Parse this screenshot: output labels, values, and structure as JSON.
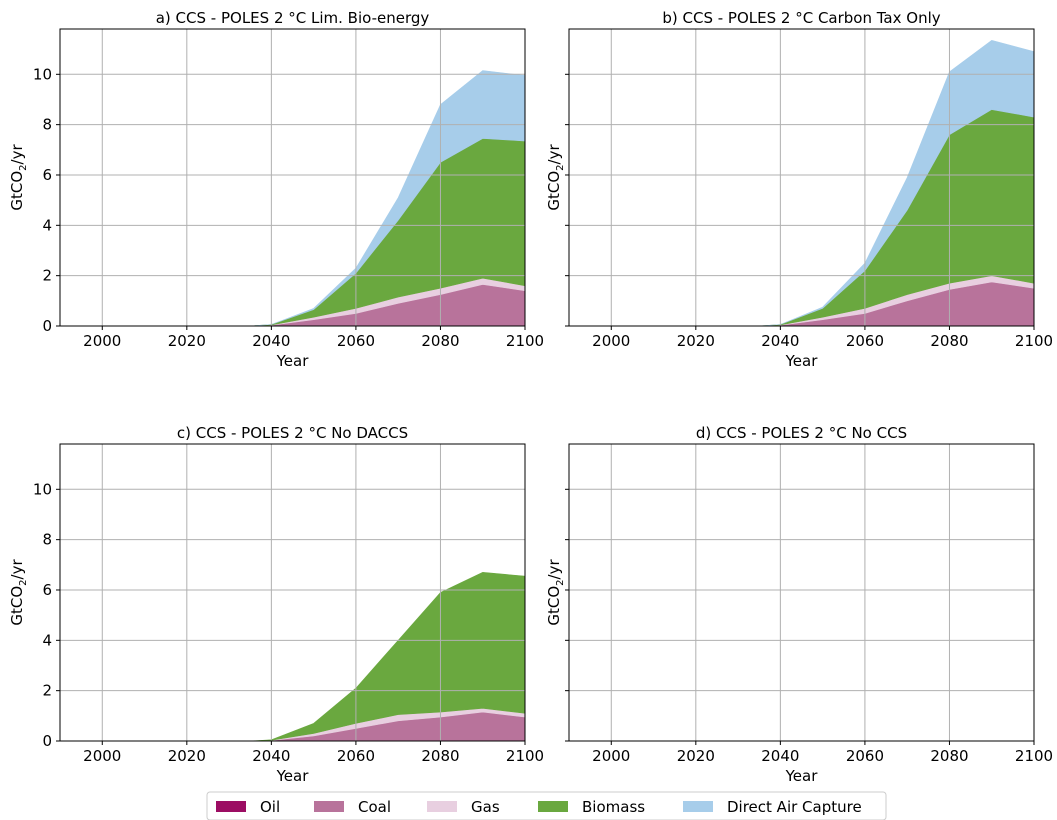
{
  "figure": {
    "legend": {
      "placement": "bottom-center",
      "entries": [
        {
          "name": "Oil",
          "color": "#9c0d63"
        },
        {
          "name": "Coal",
          "color": "#b8739b"
        },
        {
          "name": "Gas",
          "color": "#e8cfe0"
        },
        {
          "name": "Biomass",
          "color": "#6aa83f"
        },
        {
          "name": "Direct Air Capture",
          "color": "#a7cdea"
        }
      ]
    }
  },
  "chart_data": [
    {
      "type": "area",
      "stacked": true,
      "title": "a) CCS - POLES 2 °C Lim. Bio-energy",
      "xlabel": "Year",
      "ylabel_main": "GtCO",
      "ylabel_sub": "2",
      "ylabel_end": "/yr",
      "show_yticklabels": true,
      "xlim": [
        1990,
        2100
      ],
      "ylim": [
        0,
        11.8
      ],
      "xticks": [
        2000,
        2020,
        2040,
        2060,
        2080,
        2100
      ],
      "yticks": [
        0,
        2,
        4,
        6,
        8,
        10
      ],
      "grid": true,
      "x": [
        2035,
        2040,
        2050,
        2060,
        2070,
        2080,
        2090,
        2100
      ],
      "series": [
        {
          "name": "Oil",
          "values": [
            0,
            0,
            0,
            0,
            0,
            0,
            0,
            0
          ]
        },
        {
          "name": "Coal",
          "values": [
            0,
            0.03,
            0.25,
            0.5,
            0.9,
            1.25,
            1.65,
            1.4
          ]
        },
        {
          "name": "Gas",
          "values": [
            0,
            0.01,
            0.1,
            0.2,
            0.25,
            0.25,
            0.25,
            0.2
          ]
        },
        {
          "name": "Biomass",
          "values": [
            0,
            0.02,
            0.3,
            1.4,
            3.05,
            5.0,
            5.55,
            5.75
          ]
        },
        {
          "name": "Direct Air Capture",
          "values": [
            0,
            0,
            0.05,
            0.2,
            0.9,
            2.3,
            2.7,
            2.6
          ]
        }
      ]
    },
    {
      "type": "area",
      "stacked": true,
      "title": "b) CCS - POLES 2 °C Carbon Tax Only",
      "xlabel": "Year",
      "ylabel_main": "GtCO",
      "ylabel_sub": "2",
      "ylabel_end": "/yr",
      "show_yticklabels": false,
      "xlim": [
        1990,
        2100
      ],
      "ylim": [
        0,
        11.8
      ],
      "xticks": [
        2000,
        2020,
        2040,
        2060,
        2080,
        2100
      ],
      "yticks": [
        0,
        2,
        4,
        6,
        8,
        10
      ],
      "grid": true,
      "x": [
        2035,
        2040,
        2050,
        2060,
        2070,
        2080,
        2090,
        2100
      ],
      "series": [
        {
          "name": "Oil",
          "values": [
            0,
            0,
            0,
            0,
            0,
            0,
            0,
            0
          ]
        },
        {
          "name": "Coal",
          "values": [
            0,
            0.03,
            0.25,
            0.5,
            1.0,
            1.45,
            1.75,
            1.5
          ]
        },
        {
          "name": "Gas",
          "values": [
            0,
            0.01,
            0.1,
            0.2,
            0.25,
            0.25,
            0.25,
            0.2
          ]
        },
        {
          "name": "Biomass",
          "values": [
            0,
            0.02,
            0.35,
            1.5,
            3.35,
            5.9,
            6.6,
            6.6
          ]
        },
        {
          "name": "Direct Air Capture",
          "values": [
            0,
            0,
            0.05,
            0.3,
            1.3,
            2.5,
            2.75,
            2.6
          ]
        }
      ]
    },
    {
      "type": "area",
      "stacked": true,
      "title": "c) CCS - POLES 2 °C No DACCS",
      "xlabel": "Year",
      "ylabel_main": "GtCO",
      "ylabel_sub": "2",
      "ylabel_end": "/yr",
      "show_yticklabels": true,
      "xlim": [
        1990,
        2100
      ],
      "ylim": [
        0,
        11.8
      ],
      "xticks": [
        2000,
        2020,
        2040,
        2060,
        2080,
        2100
      ],
      "yticks": [
        0,
        2,
        4,
        6,
        8,
        10
      ],
      "grid": true,
      "x": [
        2035,
        2040,
        2050,
        2060,
        2070,
        2080,
        2090,
        2100
      ],
      "series": [
        {
          "name": "Oil",
          "values": [
            0,
            0,
            0,
            0,
            0,
            0,
            0,
            0
          ]
        },
        {
          "name": "Coal",
          "values": [
            0,
            0.02,
            0.2,
            0.5,
            0.8,
            0.95,
            1.15,
            0.95
          ]
        },
        {
          "name": "Gas",
          "values": [
            0,
            0.01,
            0.1,
            0.2,
            0.25,
            0.2,
            0.15,
            0.15
          ]
        },
        {
          "name": "Biomass",
          "values": [
            0,
            0.02,
            0.4,
            1.4,
            2.95,
            4.75,
            5.4,
            5.45
          ]
        },
        {
          "name": "Direct Air Capture",
          "values": [
            0,
            0,
            0,
            0,
            0,
            0,
            0,
            0
          ]
        }
      ]
    },
    {
      "type": "area",
      "stacked": true,
      "title": "d) CCS - POLES 2 °C No CCS",
      "xlabel": "Year",
      "ylabel_main": "GtCO",
      "ylabel_sub": "2",
      "ylabel_end": "/yr",
      "show_yticklabels": false,
      "xlim": [
        1990,
        2100
      ],
      "ylim": [
        0,
        11.8
      ],
      "xticks": [
        2000,
        2020,
        2040,
        2060,
        2080,
        2100
      ],
      "yticks": [
        0,
        2,
        4,
        6,
        8,
        10
      ],
      "grid": true,
      "x": [],
      "series": []
    }
  ]
}
